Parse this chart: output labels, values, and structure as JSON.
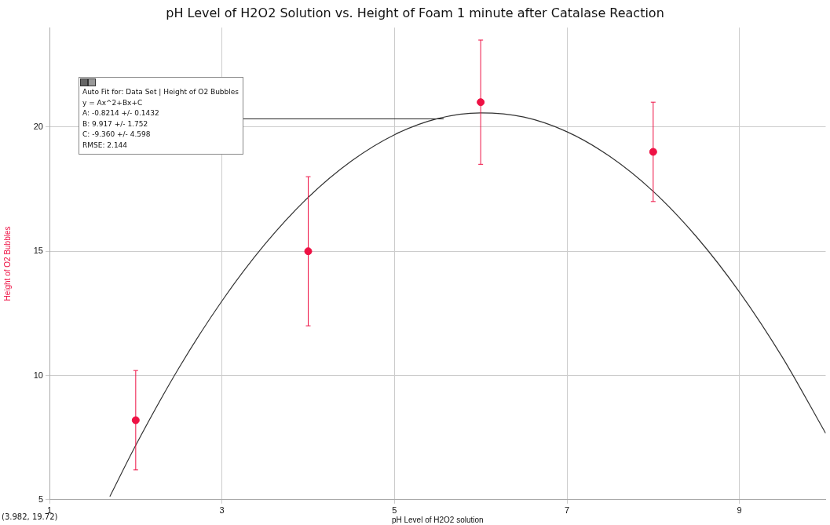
{
  "chart_data": {
    "type": "scatter",
    "title": "pH Level of H2O2 Solution vs. Height of Foam 1 minute after Catalase Reaction",
    "xlabel": "pH Level of H2O2 solution",
    "ylabel": "Height of O2 Bubbles",
    "xlim": [
      1,
      10
    ],
    "ylim": [
      5,
      24
    ],
    "xticks": [
      1,
      3,
      5,
      7,
      9
    ],
    "yticks": [
      5,
      10,
      15,
      20
    ],
    "grid": true,
    "legend": false,
    "marker": "circle",
    "series": [
      {
        "type": "scatter",
        "color": "#ee1144",
        "x": [
          2,
          4,
          6,
          8
        ],
        "values": [
          8.2,
          15,
          21,
          19
        ],
        "errors": [
          2,
          3,
          2.5,
          2
        ]
      },
      {
        "type": "line",
        "color": "#333333",
        "marker": "none",
        "x": [
          1.7,
          2,
          2.5,
          3,
          3.5,
          4,
          4.5,
          5,
          5.5,
          6,
          6.5,
          7,
          7.5,
          8,
          8.5,
          9,
          9.5,
          10
        ],
        "values": [
          5.13,
          7.19,
          10.3,
          13.0,
          15.29,
          17.17,
          18.63,
          19.69,
          20.34,
          20.57,
          20.4,
          19.81,
          18.81,
          17.41,
          15.59,
          13.36,
          10.72,
          7.67
        ]
      }
    ],
    "annotations": [
      "Auto Fit for: Data Set | Height of O2 Bubbles",
      "y = Ax^2+Bx+C",
      "A: -0.8214 +/- 0.1432",
      "B: 9.917 +/- 1.752",
      "C: -9.360 +/- 4.598",
      "RMSE: 2.144",
      "(3.982, 19.72)"
    ]
  }
}
